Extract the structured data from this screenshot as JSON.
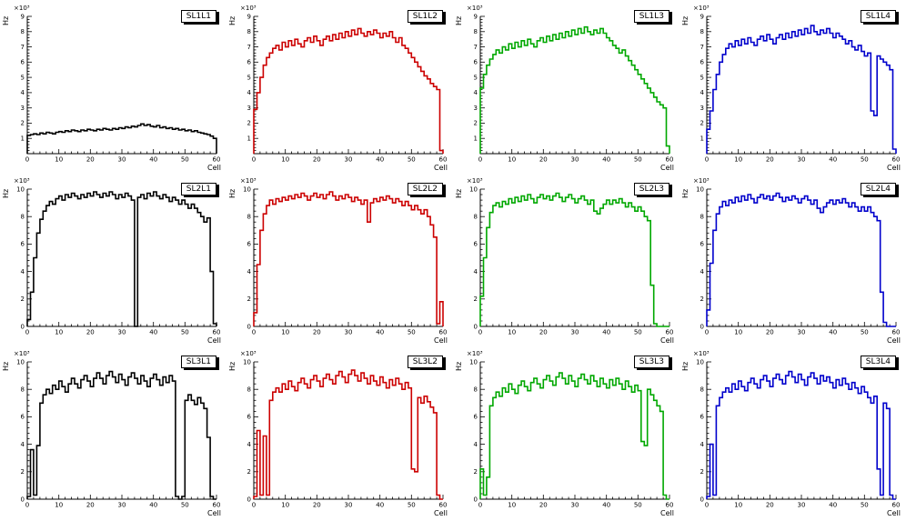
{
  "page": {
    "background": "#ffffff"
  },
  "chart_data": [
    {
      "type": "line",
      "title": "SL1L1",
      "color": "#000000",
      "xlabel": "Cell",
      "ylabel": "Hz",
      "scale_label": "×10³",
      "xlim": [
        0,
        60
      ],
      "ylim": [
        0,
        9
      ],
      "xticks": [
        0,
        10,
        20,
        30,
        40,
        50,
        60
      ],
      "yticks": [
        1,
        2,
        3,
        4,
        5,
        6,
        7,
        8,
        9
      ],
      "bin_width": 1,
      "values": [
        1.2,
        1.25,
        1.3,
        1.25,
        1.35,
        1.3,
        1.4,
        1.35,
        1.3,
        1.4,
        1.45,
        1.4,
        1.5,
        1.45,
        1.55,
        1.5,
        1.45,
        1.55,
        1.5,
        1.6,
        1.55,
        1.5,
        1.6,
        1.55,
        1.65,
        1.6,
        1.55,
        1.65,
        1.6,
        1.7,
        1.65,
        1.75,
        1.7,
        1.8,
        1.75,
        1.85,
        1.95,
        1.85,
        1.9,
        1.8,
        1.75,
        1.85,
        1.7,
        1.75,
        1.65,
        1.7,
        1.6,
        1.65,
        1.55,
        1.6,
        1.5,
        1.55,
        1.45,
        1.5,
        1.4,
        1.35,
        1.3,
        1.25,
        1.15,
        1.0
      ]
    },
    {
      "type": "line",
      "title": "SL1L2",
      "color": "#cc0000",
      "xlabel": "Cell",
      "ylabel": "Hz",
      "scale_label": "×10³",
      "xlim": [
        0,
        60
      ],
      "ylim": [
        0,
        9
      ],
      "xticks": [
        0,
        10,
        20,
        30,
        40,
        50,
        60
      ],
      "yticks": [
        1,
        2,
        3,
        4,
        5,
        6,
        7,
        8,
        9
      ],
      "bin_width": 1,
      "values": [
        2.9,
        4.0,
        5.0,
        5.8,
        6.3,
        6.6,
        6.9,
        7.1,
        6.8,
        7.3,
        7.0,
        7.4,
        7.1,
        7.5,
        7.2,
        7.0,
        7.4,
        7.6,
        7.3,
        7.7,
        7.4,
        7.1,
        7.5,
        7.7,
        7.4,
        7.8,
        7.5,
        7.9,
        7.6,
        8.0,
        7.7,
        8.1,
        7.8,
        8.2,
        7.9,
        7.7,
        8.0,
        7.8,
        8.1,
        7.9,
        7.6,
        7.9,
        7.7,
        8.0,
        7.6,
        7.3,
        7.6,
        7.1,
        6.9,
        6.6,
        6.3,
        6.0,
        5.7,
        5.4,
        5.1,
        4.9,
        4.6,
        4.4,
        4.2,
        0.2
      ]
    },
    {
      "type": "line",
      "title": "SL1L3",
      "color": "#00a800",
      "xlabel": "Cell",
      "ylabel": "Hz",
      "scale_label": "×10³",
      "xlim": [
        0,
        60
      ],
      "ylim": [
        0,
        9
      ],
      "xticks": [
        0,
        10,
        20,
        30,
        40,
        50,
        60
      ],
      "yticks": [
        1,
        2,
        3,
        4,
        5,
        6,
        7,
        8,
        9
      ],
      "bin_width": 1,
      "values": [
        4.3,
        5.2,
        5.8,
        6.2,
        6.5,
        6.8,
        6.6,
        7.0,
        6.8,
        7.2,
        6.9,
        7.3,
        7.0,
        7.4,
        7.1,
        7.5,
        7.2,
        7.0,
        7.4,
        7.6,
        7.3,
        7.7,
        7.4,
        7.8,
        7.5,
        7.9,
        7.6,
        8.0,
        7.7,
        8.1,
        7.8,
        8.2,
        7.9,
        8.3,
        8.0,
        7.8,
        8.1,
        7.9,
        8.2,
        7.9,
        7.6,
        7.4,
        7.1,
        6.9,
        6.6,
        6.8,
        6.4,
        6.1,
        5.8,
        5.5,
        5.2,
        4.9,
        4.6,
        4.3,
        4.0,
        3.7,
        3.4,
        3.2,
        3.0,
        0.5
      ]
    },
    {
      "type": "line",
      "title": "SL1L4",
      "color": "#0000cc",
      "xlabel": "Cell",
      "ylabel": "Hz",
      "scale_label": "×10³",
      "xlim": [
        0,
        60
      ],
      "ylim": [
        0,
        9
      ],
      "xticks": [
        0,
        10,
        20,
        30,
        40,
        50,
        60
      ],
      "yticks": [
        1,
        2,
        3,
        4,
        5,
        6,
        7,
        8,
        9
      ],
      "bin_width": 1,
      "values": [
        1.6,
        2.8,
        4.2,
        5.2,
        6.0,
        6.5,
        6.9,
        7.2,
        7.0,
        7.4,
        7.1,
        7.5,
        7.2,
        7.6,
        7.3,
        7.1,
        7.5,
        7.7,
        7.4,
        7.8,
        7.5,
        7.2,
        7.6,
        7.8,
        7.5,
        7.9,
        7.6,
        8.0,
        7.7,
        8.1,
        7.8,
        8.2,
        7.9,
        8.4,
        8.0,
        7.8,
        8.1,
        7.9,
        8.2,
        7.9,
        7.6,
        7.9,
        7.7,
        7.5,
        7.2,
        7.4,
        7.0,
        6.8,
        7.1,
        6.7,
        6.4,
        6.6,
        2.8,
        2.5,
        6.4,
        6.2,
        6.0,
        5.8,
        5.5,
        0.3
      ]
    },
    {
      "type": "line",
      "title": "SL2L1",
      "color": "#000000",
      "xlabel": "Cell",
      "ylabel": "Hz",
      "scale_label": "×10³",
      "xlim": [
        0,
        60
      ],
      "ylim": [
        0,
        10
      ],
      "xticks": [
        0,
        10,
        20,
        30,
        40,
        50,
        60
      ],
      "yticks": [
        0,
        2,
        4,
        6,
        8,
        10
      ],
      "bin_width": 1,
      "values": [
        0.5,
        2.5,
        5.0,
        6.8,
        7.8,
        8.4,
        8.8,
        9.1,
        8.9,
        9.3,
        9.5,
        9.2,
        9.6,
        9.4,
        9.7,
        9.5,
        9.3,
        9.6,
        9.4,
        9.7,
        9.5,
        9.8,
        9.6,
        9.4,
        9.7,
        9.5,
        9.8,
        9.6,
        9.3,
        9.6,
        9.4,
        9.7,
        9.5,
        9.2,
        0.0,
        9.4,
        9.6,
        9.3,
        9.7,
        9.5,
        9.8,
        9.5,
        9.3,
        9.6,
        9.4,
        9.1,
        9.4,
        9.2,
        8.9,
        9.2,
        8.9,
        8.6,
        8.9,
        8.6,
        8.3,
        8.0,
        7.6,
        7.9,
        4.0,
        0.2
      ]
    },
    {
      "type": "line",
      "title": "SL2L2",
      "color": "#cc0000",
      "xlabel": "Cell",
      "ylabel": "Hz",
      "scale_label": "×10³",
      "xlim": [
        0,
        60
      ],
      "ylim": [
        0,
        10
      ],
      "xticks": [
        0,
        10,
        20,
        30,
        40,
        50,
        60
      ],
      "yticks": [
        0,
        2,
        4,
        6,
        8,
        10
      ],
      "bin_width": 1,
      "values": [
        1.0,
        4.5,
        7.0,
        8.2,
        8.8,
        9.2,
        8.9,
        9.3,
        9.1,
        9.4,
        9.2,
        9.5,
        9.3,
        9.6,
        9.4,
        9.7,
        9.5,
        9.2,
        9.5,
        9.7,
        9.4,
        9.6,
        9.3,
        9.6,
        9.8,
        9.5,
        9.2,
        9.5,
        9.3,
        9.6,
        9.4,
        9.1,
        9.4,
        9.2,
        8.9,
        9.2,
        7.6,
        9.0,
        9.3,
        9.1,
        9.4,
        9.2,
        9.5,
        9.3,
        9.0,
        9.3,
        9.1,
        8.8,
        9.1,
        8.8,
        8.5,
        8.8,
        8.5,
        8.2,
        8.5,
        8.0,
        7.4,
        6.5,
        0.2,
        1.8
      ]
    },
    {
      "type": "line",
      "title": "SL2L3",
      "color": "#00a800",
      "xlabel": "Cell",
      "ylabel": "Hz",
      "scale_label": "×10³",
      "xlim": [
        0,
        60
      ],
      "ylim": [
        0,
        10
      ],
      "xticks": [
        0,
        10,
        20,
        30,
        40,
        50,
        60
      ],
      "yticks": [
        0,
        2,
        4,
        6,
        8,
        10
      ],
      "bin_width": 1,
      "values": [
        2.2,
        5.0,
        7.2,
        8.3,
        8.8,
        9.0,
        8.7,
        9.1,
        8.9,
        9.3,
        9.0,
        9.4,
        9.1,
        9.5,
        9.2,
        9.6,
        9.3,
        9.0,
        9.4,
        9.6,
        9.3,
        9.5,
        9.2,
        9.5,
        9.7,
        9.4,
        9.1,
        9.4,
        9.6,
        9.3,
        9.0,
        9.3,
        9.5,
        9.2,
        8.9,
        9.2,
        8.4,
        8.2,
        8.6,
        8.9,
        9.2,
        8.9,
        9.2,
        9.0,
        9.3,
        9.0,
        8.7,
        9.0,
        8.7,
        8.4,
        8.7,
        8.4,
        8.0,
        7.7,
        3.0,
        0.2,
        0.0,
        0.0,
        0.0,
        0.0
      ]
    },
    {
      "type": "line",
      "title": "SL2L4",
      "color": "#0000cc",
      "xlabel": "Cell",
      "ylabel": "Hz",
      "scale_label": "×10³",
      "xlim": [
        0,
        60
      ],
      "ylim": [
        0,
        10
      ],
      "xticks": [
        0,
        10,
        20,
        30,
        40,
        50,
        60
      ],
      "yticks": [
        0,
        2,
        4,
        6,
        8,
        10
      ],
      "bin_width": 1,
      "values": [
        1.2,
        4.6,
        7.0,
        8.2,
        8.7,
        9.1,
        8.8,
        9.2,
        9.0,
        9.4,
        9.1,
        9.5,
        9.2,
        9.6,
        9.3,
        9.0,
        9.4,
        9.6,
        9.3,
        9.5,
        9.2,
        9.5,
        9.7,
        9.4,
        9.1,
        9.4,
        9.2,
        9.5,
        9.3,
        9.0,
        9.3,
        9.5,
        9.2,
        8.9,
        9.2,
        8.6,
        8.3,
        8.7,
        9.0,
        9.2,
        8.9,
        9.2,
        9.0,
        9.3,
        9.0,
        8.7,
        9.0,
        8.7,
        8.4,
        8.7,
        8.4,
        8.7,
        8.3,
        8.0,
        7.7,
        2.5,
        0.3,
        0.0,
        0.0,
        0.0
      ]
    },
    {
      "type": "line",
      "title": "SL3L1",
      "color": "#000000",
      "xlabel": "Cell",
      "ylabel": "Hz",
      "scale_label": "×10³",
      "xlim": [
        0,
        60
      ],
      "ylim": [
        0,
        10
      ],
      "xticks": [
        0,
        10,
        20,
        30,
        40,
        50,
        60
      ],
      "yticks": [
        0,
        2,
        4,
        6,
        8,
        10
      ],
      "bin_width": 1,
      "values": [
        0.2,
        3.6,
        0.3,
        3.9,
        7.0,
        7.6,
        8.0,
        7.7,
        8.3,
        8.0,
        8.6,
        8.2,
        7.8,
        8.4,
        8.8,
        8.4,
        8.1,
        8.7,
        9.0,
        8.6,
        8.2,
        8.8,
        9.2,
        8.8,
        8.4,
        9.0,
        9.3,
        8.9,
        8.5,
        9.1,
        8.7,
        8.3,
        8.9,
        9.2,
        8.8,
        8.4,
        9.0,
        8.6,
        8.2,
        8.8,
        9.1,
        8.7,
        8.3,
        8.9,
        8.5,
        9.0,
        8.6,
        0.2,
        0.0,
        0.2,
        7.2,
        7.6,
        7.2,
        6.9,
        7.4,
        7.0,
        6.6,
        4.5,
        0.2,
        0.0
      ]
    },
    {
      "type": "line",
      "title": "SL3L2",
      "color": "#cc0000",
      "xlabel": "Cell",
      "ylabel": "Hz",
      "scale_label": "×10³",
      "xlim": [
        0,
        60
      ],
      "ylim": [
        0,
        10
      ],
      "xticks": [
        0,
        10,
        20,
        30,
        40,
        50,
        60
      ],
      "yticks": [
        0,
        2,
        4,
        6,
        8,
        10
      ],
      "bin_width": 1,
      "values": [
        0.2,
        5.0,
        0.3,
        4.6,
        0.3,
        7.2,
        7.8,
        8.1,
        7.8,
        8.4,
        8.0,
        8.6,
        8.2,
        7.9,
        8.5,
        8.8,
        8.4,
        8.1,
        8.7,
        9.0,
        8.6,
        8.2,
        8.8,
        9.1,
        8.7,
        8.4,
        9.0,
        9.3,
        8.9,
        8.5,
        9.1,
        9.4,
        9.0,
        8.6,
        9.2,
        8.8,
        8.4,
        9.0,
        8.6,
        8.3,
        8.9,
        8.5,
        8.1,
        8.7,
        8.3,
        8.8,
        8.4,
        8.0,
        8.5,
        8.1,
        2.2,
        2.0,
        7.4,
        7.0,
        7.5,
        7.1,
        6.7,
        6.3,
        0.3,
        0.0
      ]
    },
    {
      "type": "line",
      "title": "SL3L3",
      "color": "#00a800",
      "xlabel": "Cell",
      "ylabel": "Hz",
      "scale_label": "×10³",
      "xlim": [
        0,
        60
      ],
      "ylim": [
        0,
        10
      ],
      "xticks": [
        0,
        10,
        20,
        30,
        40,
        50,
        60
      ],
      "yticks": [
        0,
        2,
        4,
        6,
        8,
        10
      ],
      "bin_width": 1,
      "values": [
        2.2,
        0.3,
        1.6,
        6.8,
        7.4,
        7.8,
        7.5,
        8.1,
        7.8,
        8.4,
        8.0,
        7.7,
        8.3,
        8.6,
        8.2,
        7.9,
        8.5,
        8.8,
        8.4,
        8.1,
        8.7,
        9.0,
        8.6,
        8.3,
        8.9,
        9.2,
        8.8,
        8.4,
        9.0,
        8.6,
        8.2,
        8.8,
        9.1,
        8.7,
        8.4,
        9.0,
        8.6,
        8.2,
        8.8,
        8.4,
        8.1,
        8.7,
        8.3,
        8.8,
        8.4,
        8.0,
        8.6,
        8.2,
        7.8,
        8.3,
        7.9,
        4.2,
        3.9,
        8.0,
        7.6,
        7.2,
        6.8,
        6.4,
        0.3,
        0.0
      ]
    },
    {
      "type": "line",
      "title": "SL3L4",
      "color": "#0000cc",
      "xlabel": "Cell",
      "ylabel": "Hz",
      "scale_label": "×10³",
      "xlim": [
        0,
        60
      ],
      "ylim": [
        0,
        10
      ],
      "xticks": [
        0,
        10,
        20,
        30,
        40,
        50,
        60
      ],
      "yticks": [
        0,
        2,
        4,
        6,
        8,
        10
      ],
      "bin_width": 1,
      "values": [
        0.2,
        4.0,
        0.3,
        6.8,
        7.4,
        7.8,
        8.1,
        7.8,
        8.4,
        8.0,
        8.6,
        8.2,
        7.9,
        8.5,
        8.8,
        8.4,
        8.1,
        8.7,
        9.0,
        8.6,
        8.2,
        8.8,
        9.1,
        8.7,
        8.4,
        9.0,
        9.3,
        8.9,
        8.5,
        9.1,
        8.7,
        8.3,
        8.9,
        9.2,
        8.8,
        8.4,
        9.0,
        8.6,
        8.9,
        8.5,
        8.1,
        8.7,
        8.3,
        8.8,
        8.4,
        8.0,
        8.5,
        8.1,
        7.7,
        8.2,
        7.8,
        7.4,
        7.0,
        7.5,
        2.2,
        0.3,
        7.0,
        6.6,
        0.3,
        0.0
      ]
    }
  ]
}
